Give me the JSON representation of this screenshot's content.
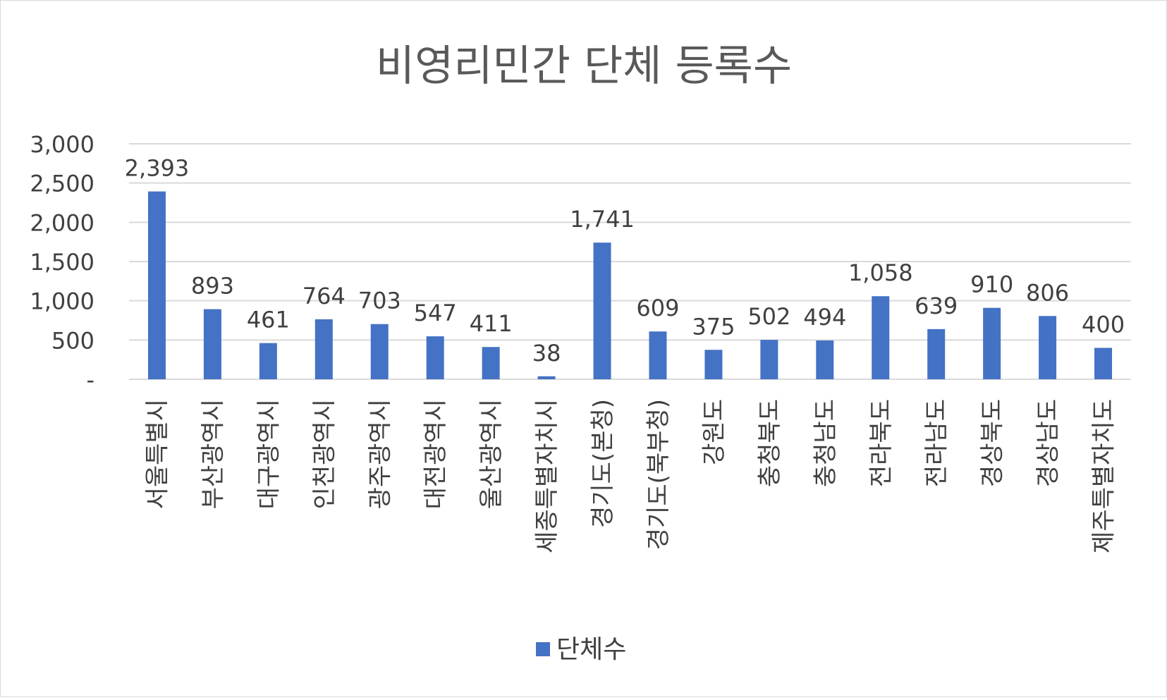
{
  "chart_data": {
    "type": "bar",
    "title": "비영리민간 단체 등록수",
    "categories": [
      "서울특별시",
      "부산광역시",
      "대구광역시",
      "인천광역시",
      "광주광역시",
      "대전광역시",
      "울산광역시",
      "세종특별자치시",
      "경기도(본청)",
      "경기도(북부청)",
      "강원도",
      "충청북도",
      "충청남도",
      "전라북도",
      "전라남도",
      "경상북도",
      "경상남도",
      "제주특별자치도"
    ],
    "series": [
      {
        "name": "단체수",
        "values": [
          2393,
          893,
          461,
          764,
          703,
          547,
          411,
          38,
          1741,
          609,
          375,
          502,
          494,
          1058,
          639,
          910,
          806,
          400
        ]
      }
    ],
    "data_labels": [
      "2,393",
      "893",
      "461",
      "764",
      "703",
      "547",
      "411",
      "38",
      "1,741",
      "609",
      "375",
      "502",
      "494",
      "1,058",
      "639",
      "910",
      "806",
      "400"
    ],
    "ylim": [
      0,
      3000
    ],
    "y_ticks": [
      0,
      500,
      1000,
      1500,
      2000,
      2500,
      3000
    ],
    "y_tick_labels": [
      "-",
      "500",
      "1,000",
      "1,500",
      "2,000",
      "2,500",
      "3,000"
    ],
    "xlabel": "",
    "ylabel": "",
    "grid": true,
    "legend_position": "bottom",
    "bar_color": "#4472C4",
    "gridline_color": "#d9d9d9",
    "text_color": "#404040"
  }
}
